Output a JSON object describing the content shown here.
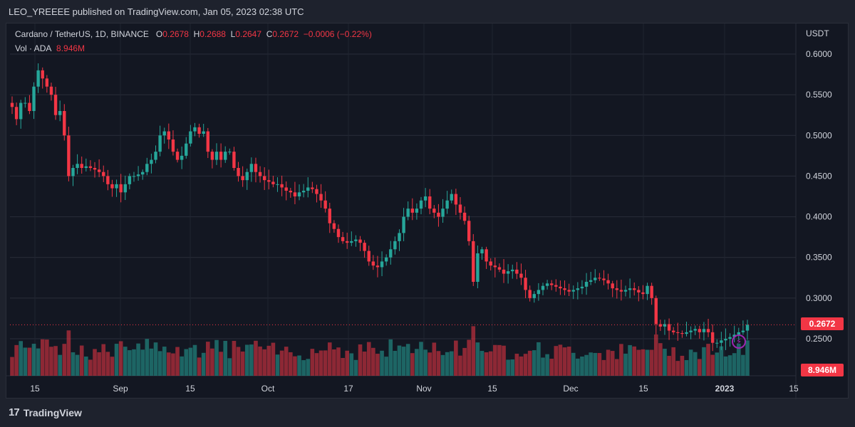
{
  "header": {
    "published": "LEO_YREEEE published on TradingView.com, Jan 05, 2023 02:38 UTC"
  },
  "legend": {
    "symbol": "Cardano / TetherUS, 1D, BINANCE",
    "o_label": "O",
    "o_value": "0.2678",
    "h_label": "H",
    "h_value": "0.2688",
    "l_label": "L",
    "l_value": "0.2647",
    "c_label": "C",
    "c_value": "0.2672",
    "change": "−0.0006 (−0.22%)",
    "vol_label": "Vol · ADA",
    "vol_value": "8.946M"
  },
  "badges": {
    "last_price": "0.2672",
    "last_volume": "8.946M"
  },
  "footer": {
    "brand": "TradingView",
    "icon": "tradingview-logo-icon"
  },
  "colors": {
    "up": "#26a69a",
    "down": "#f23645",
    "background": "#131722",
    "grid": "#2a2e39"
  },
  "chart_data": {
    "type": "candlestick",
    "symbol": "ADAUSDT",
    "interval": "1D",
    "y_axis": {
      "unit": "USDT",
      "ylim": [
        0.22,
        0.62
      ],
      "ticks": [
        "0.6000",
        "0.5500",
        "0.5000",
        "0.4500",
        "0.4000",
        "0.3500",
        "0.3000",
        "0.2500"
      ]
    },
    "x_axis": {
      "ticks": [
        "15",
        "Sep",
        "15",
        "Oct",
        "17",
        "Nov",
        "15",
        "Dec",
        "15",
        "2023",
        "15"
      ]
    },
    "grid": true,
    "last_price": 0.2672,
    "closes": [
      0.535,
      0.52,
      0.54,
      0.54,
      0.53,
      0.56,
      0.58,
      0.57,
      0.56,
      0.55,
      0.525,
      0.53,
      0.5,
      0.45,
      0.46,
      0.465,
      0.46,
      0.462,
      0.46,
      0.458,
      0.455,
      0.45,
      0.44,
      0.435,
      0.44,
      0.43,
      0.44,
      0.45,
      0.45,
      0.452,
      0.455,
      0.465,
      0.47,
      0.48,
      0.5,
      0.505,
      0.495,
      0.48,
      0.47,
      0.475,
      0.49,
      0.505,
      0.51,
      0.502,
      0.505,
      0.48,
      0.47,
      0.48,
      0.47,
      0.48,
      0.48,
      0.46,
      0.45,
      0.445,
      0.455,
      0.465,
      0.455,
      0.45,
      0.445,
      0.443,
      0.44,
      0.44,
      0.436,
      0.432,
      0.43,
      0.425,
      0.43,
      0.432,
      0.436,
      0.434,
      0.428,
      0.42,
      0.41,
      0.392,
      0.385,
      0.375,
      0.37,
      0.368,
      0.37,
      0.372,
      0.368,
      0.358,
      0.345,
      0.34,
      0.338,
      0.345,
      0.35,
      0.36,
      0.37,
      0.38,
      0.4,
      0.41,
      0.405,
      0.41,
      0.42,
      0.425,
      0.41,
      0.405,
      0.4,
      0.41,
      0.42,
      0.428,
      0.415,
      0.405,
      0.395,
      0.37,
      0.32,
      0.355,
      0.36,
      0.345,
      0.34,
      0.338,
      0.335,
      0.33,
      0.333,
      0.335,
      0.33,
      0.325,
      0.31,
      0.3,
      0.305,
      0.31,
      0.315,
      0.318,
      0.316,
      0.314,
      0.312,
      0.31,
      0.308,
      0.31,
      0.312,
      0.314,
      0.32,
      0.322,
      0.325,
      0.324,
      0.322,
      0.318,
      0.312,
      0.31,
      0.308,
      0.31,
      0.312,
      0.31,
      0.307,
      0.305,
      0.315,
      0.3,
      0.268,
      0.265,
      0.268,
      0.26,
      0.258,
      0.257,
      0.256,
      0.258,
      0.26,
      0.262,
      0.258,
      0.262,
      0.258,
      0.245,
      0.245,
      0.248,
      0.25,
      0.252,
      0.255,
      0.258,
      0.26,
      0.2672
    ]
  }
}
